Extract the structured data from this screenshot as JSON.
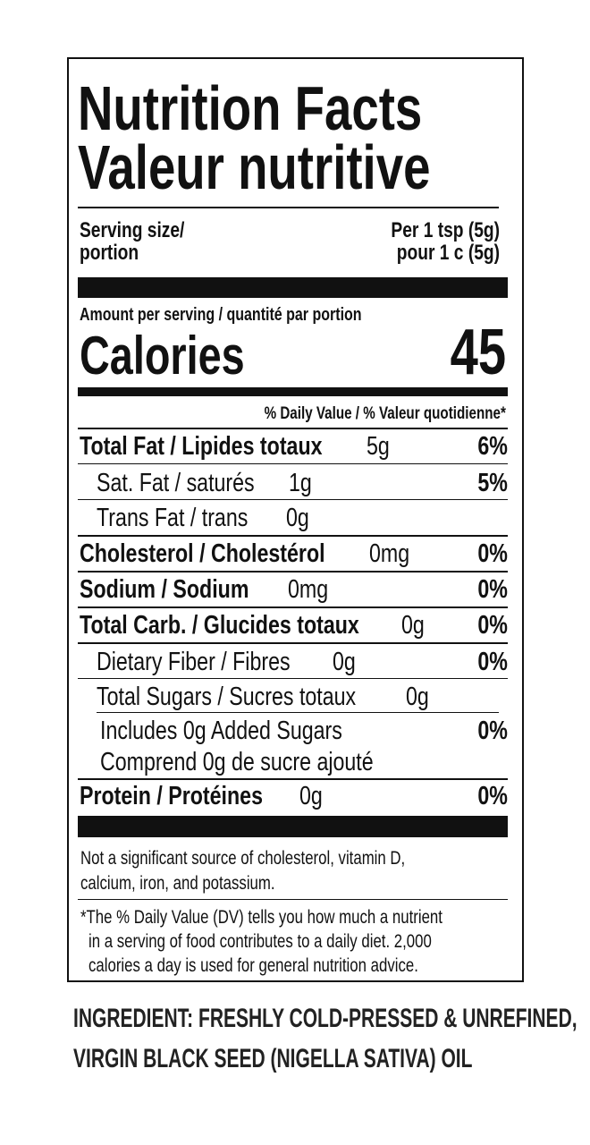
{
  "title": {
    "en": "Nutrition Facts",
    "fr": "Valeur nutritive"
  },
  "serving": {
    "label_1": "Serving size/",
    "label_2": "portion",
    "value_1": "Per 1 tsp (5g)",
    "value_2": "pour 1 c (5g)"
  },
  "amount_label": "Amount per serving / quantité par portion",
  "calories": {
    "label": "Calories",
    "value": "45"
  },
  "dv_header": "% Daily Value / % Valeur quotidienne*",
  "rows": [
    {
      "label": "Total Fat / Lipides totaux",
      "amount": "5g",
      "dv": "6%"
    },
    {
      "label": "Sat. Fat / saturés",
      "amount": "1g",
      "dv": "5%"
    },
    {
      "label": "Trans Fat / trans",
      "amount": "0g",
      "dv": ""
    },
    {
      "label": "Cholesterol / Cholestérol",
      "amount": "0mg",
      "dv": "0%"
    },
    {
      "label": "Sodium / Sodium",
      "amount": "0mg",
      "dv": "0%"
    },
    {
      "label": "Total Carb. / Glucides totaux",
      "amount": "0g",
      "dv": "0%"
    },
    {
      "label": "Dietary Fiber / Fibres",
      "amount": "0g",
      "dv": "0%"
    },
    {
      "label": "Total Sugars / Sucres totaux",
      "amount": "0g",
      "dv": ""
    },
    {
      "label": "Includes 0g Added Sugars",
      "amount": "",
      "dv": "0%"
    },
    {
      "label": "Comprend 0g de sucre ajouté",
      "amount": "",
      "dv": ""
    },
    {
      "label": "Protein / Protéines",
      "amount": "0g",
      "dv": "0%"
    }
  ],
  "note_1": [
    "Not a significant source of cholesterol, vitamin D,",
    "calcium, iron, and potassium."
  ],
  "note_2": [
    "*The % Daily Value (DV) tells you how much a nutrient",
    "in a serving of food contributes to a daily diet. 2,000",
    "calories a day is used for general nutrition advice."
  ],
  "ingredients": [
    "INGREDIENT: FRESHLY COLD-PRESSED & UNREFINED,",
    "VIRGIN BLACK SEED (NIGELLA SATIVA) OIL"
  ]
}
